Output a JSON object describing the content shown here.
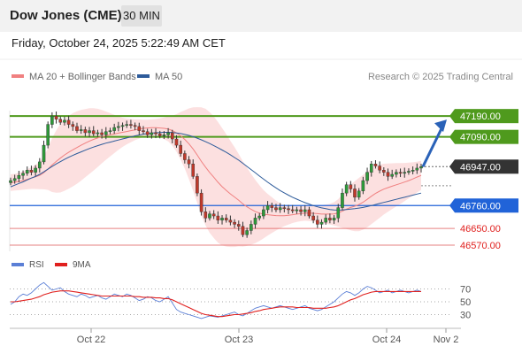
{
  "header": {
    "title": "Dow Jones (CME)",
    "timeframe": "30 MIN"
  },
  "datetime": "Friday, October 24, 2025 5:22:49 AM CET",
  "legend": {
    "ma20": {
      "label": "MA 20 + Bollinger Bands",
      "color": "#f08080"
    },
    "ma50": {
      "label": "MA 50",
      "color": "#2d5b9a"
    }
  },
  "credit": "Research © 2025 Trading Central",
  "rsi_legend": {
    "rsi": {
      "label": "RSI",
      "color": "#5b7fd6"
    },
    "ma9": {
      "label": "9MA",
      "color": "#e0201e"
    }
  },
  "chart_data": [
    {
      "type": "line",
      "ylim": [
        46540,
        47280
      ],
      "x_ticks": [
        "Oct 22",
        "Oct 23",
        "Oct 24",
        "Nov 2"
      ],
      "levels": [
        {
          "value": 47190.0,
          "label": "47190.00",
          "kind": "resistance",
          "color": "#4f9a1d"
        },
        {
          "value": 47090.0,
          "label": "47090.00",
          "kind": "resistance",
          "color": "#4f9a1d"
        },
        {
          "value": 46947.0,
          "label": "46947.00",
          "kind": "last",
          "color": "#333333"
        },
        {
          "value": 46760.0,
          "label": "46760.00",
          "kind": "pivot",
          "color": "#2163d8"
        },
        {
          "value": 46650.0,
          "label": "46650.00",
          "kind": "support",
          "color": "#e06060"
        },
        {
          "value": 46570.0,
          "label": "46570.00",
          "kind": "support",
          "color": "#e06060"
        }
      ],
      "price": [
        46880,
        46890,
        46905,
        46915,
        46930,
        46920,
        46940,
        46970,
        47050,
        47150,
        47190,
        47175,
        47160,
        47170,
        47150,
        47140,
        47120,
        47125,
        47110,
        47120,
        47105,
        47110,
        47100,
        47115,
        47120,
        47135,
        47140,
        47145,
        47150,
        47145,
        47140,
        47120,
        47115,
        47100,
        47110,
        47105,
        47095,
        47100,
        47110,
        47080,
        47050,
        47010,
        46980,
        46960,
        46900,
        46820,
        46730,
        46700,
        46720,
        46710,
        46690,
        46700,
        46690,
        46680,
        46670,
        46660,
        46620,
        46640,
        46670,
        46700,
        46710,
        46740,
        46760,
        46750,
        46740,
        46750,
        46745,
        46740,
        46735,
        46740,
        46730,
        46740,
        46710,
        46690,
        46670,
        46680,
        46700,
        46690,
        46700,
        46750,
        46820,
        46860,
        46840,
        46800,
        46830,
        46880,
        46920,
        46960,
        46950,
        46930,
        46920,
        46900,
        46910,
        46920,
        46915,
        46920,
        46925,
        46930,
        46940,
        46947
      ],
      "series": [
        {
          "name": "MA 20",
          "values": [
            46870,
            46872,
            46876,
            46880,
            46886,
            46892,
            46898,
            46905,
            46918,
            46935,
            46955,
            46972,
            46988,
            47003,
            47016,
            47028,
            47039,
            47050,
            47060,
            47070,
            47078,
            47085,
            47091,
            47096,
            47100,
            47104,
            47108,
            47112,
            47116,
            47120,
            47124,
            47128,
            47131,
            47133,
            47134,
            47134,
            47133,
            47131,
            47128,
            47120,
            47109,
            47095,
            47078,
            47057,
            47032,
            47003,
            46972,
            46945,
            46919,
            46896,
            46872,
            46851,
            46833,
            46816,
            46801,
            46786,
            46768,
            46754,
            46742,
            46731,
            46724,
            46718,
            46716,
            46714,
            46712,
            46711,
            46711,
            46713,
            46716,
            46719,
            46721,
            46723,
            46724,
            46723,
            46721,
            46719,
            46719,
            46719,
            46720,
            46725,
            46733,
            46743,
            46751,
            46757,
            46765,
            46776,
            46790,
            46805,
            46818,
            46829,
            46839,
            46846,
            46853,
            46860,
            46866,
            46873,
            46880,
            46888,
            46897,
            46905
          ]
        },
        {
          "name": "MA 50",
          "values": [
            46850,
            46858,
            46866,
            46874,
            46883,
            46892,
            46900,
            46910,
            46922,
            46935,
            46948,
            46960,
            46971,
            46982,
            46992,
            47001,
            47010,
            47018,
            47026,
            47034,
            47041,
            47048,
            47054,
            47060,
            47065,
            47070,
            47075,
            47080,
            47085,
            47090,
            47095,
            47099,
            47103,
            47106,
            47108,
            47110,
            47111,
            47112,
            47112,
            47111,
            47109,
            47106,
            47102,
            47097,
            47091,
            47084,
            47076,
            47067,
            47058,
            47048,
            47038,
            47027,
            47016,
            47004,
            46991,
            46978,
            46963,
            46948,
            46933,
            46918,
            46902,
            46887,
            46872,
            46858,
            46845,
            46832,
            46821,
            46810,
            46800,
            46791,
            46782,
            46774,
            46767,
            46760,
            46754,
            46749,
            46745,
            46741,
            46739,
            46738,
            46739,
            46741,
            46743,
            46745,
            46748,
            46751,
            46755,
            46760,
            46765,
            46770,
            46775,
            46780,
            46785,
            46790,
            46795,
            46800,
            46805,
            46810,
            46815,
            46820
          ]
        }
      ],
      "bollinger_width": [
        40,
        40,
        42,
        44,
        48,
        52,
        58,
        66,
        80,
        100,
        130,
        150,
        165,
        172,
        175,
        176,
        174,
        170,
        164,
        158,
        150,
        140,
        128,
        116,
        104,
        92,
        80,
        70,
        62,
        56,
        50,
        46,
        42,
        40,
        40,
        42,
        46,
        52,
        60,
        72,
        90,
        115,
        140,
        170,
        200,
        230,
        260,
        280,
        290,
        292,
        290,
        282,
        270,
        255,
        240,
        222,
        205,
        188,
        170,
        152,
        134,
        116,
        100,
        86,
        72,
        60,
        50,
        44,
        40,
        38,
        36,
        36,
        38,
        40,
        42,
        44,
        46,
        50,
        56,
        66,
        80,
        96,
        110,
        120,
        128,
        132,
        134,
        134,
        132,
        128,
        122,
        116,
        110,
        104,
        98,
        92,
        86,
        80,
        74,
        70
      ]
    },
    {
      "type": "line",
      "ylim": [
        10,
        90
      ],
      "y_ticks": [
        70,
        50,
        30
      ],
      "series": [
        {
          "name": "RSI",
          "values": [
            46,
            50,
            58,
            62,
            60,
            64,
            70,
            76,
            80,
            74,
            68,
            70,
            72,
            66,
            62,
            60,
            58,
            62,
            60,
            56,
            58,
            60,
            56,
            54,
            58,
            62,
            60,
            58,
            62,
            60,
            56,
            52,
            54,
            58,
            56,
            52,
            50,
            54,
            58,
            48,
            38,
            34,
            32,
            30,
            28,
            26,
            24,
            26,
            28,
            27,
            26,
            28,
            30,
            32,
            34,
            30,
            28,
            32,
            36,
            40,
            42,
            44,
            42,
            40,
            42,
            44,
            42,
            40,
            38,
            40,
            42,
            44,
            40,
            38,
            36,
            38,
            42,
            46,
            50,
            56,
            62,
            66,
            64,
            60,
            64,
            70,
            74,
            72,
            68,
            64,
            66,
            68,
            64,
            66,
            68,
            66,
            64,
            66,
            68,
            66
          ]
        },
        {
          "name": "9MA",
          "values": [
            50,
            50,
            51,
            52,
            53,
            54,
            56,
            58,
            61,
            63,
            65,
            66,
            67,
            67,
            67,
            66,
            65,
            64,
            63,
            62,
            61,
            60,
            59,
            59,
            59,
            59,
            59,
            59,
            59,
            59,
            58,
            58,
            57,
            57,
            57,
            56,
            56,
            55,
            55,
            53,
            50,
            47,
            44,
            41,
            38,
            35,
            32,
            30,
            29,
            28,
            27,
            27,
            28,
            29,
            30,
            30,
            31,
            32,
            33,
            35,
            36,
            38,
            39,
            40,
            41,
            42,
            42,
            42,
            42,
            41,
            41,
            41,
            41,
            40,
            40,
            40,
            40,
            41,
            42,
            44,
            47,
            50,
            53,
            55,
            58,
            61,
            63,
            65,
            66,
            66,
            66,
            66,
            66,
            66,
            66,
            66,
            66,
            66,
            66,
            66
          ]
        }
      ],
      "reference_lines": [
        70,
        50,
        30
      ]
    }
  ]
}
